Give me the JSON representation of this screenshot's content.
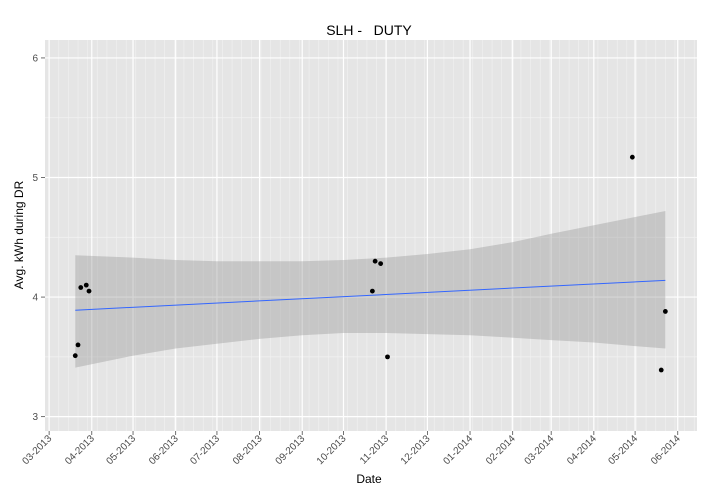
{
  "chart_data": {
    "type": "scatter",
    "title": "SLH -   DUTY",
    "xlabel": "Date",
    "ylabel": "Avg. kWh during DR",
    "x_type": "date",
    "xlim": [
      "2013-02-26",
      "2014-06-15"
    ],
    "ylim": [
      2.88,
      6.15
    ],
    "x_ticks": [
      "2013-03-01",
      "2013-04-01",
      "2013-05-01",
      "2013-06-01",
      "2013-07-01",
      "2013-08-01",
      "2013-09-01",
      "2013-10-01",
      "2013-11-01",
      "2013-12-01",
      "2014-01-01",
      "2014-02-01",
      "2014-03-01",
      "2014-04-01",
      "2014-05-01",
      "2014-06-01"
    ],
    "x_tick_labels": [
      "03-2013",
      "04-2013",
      "05-2013",
      "06-2013",
      "07-2013",
      "08-2013",
      "09-2013",
      "10-2013",
      "11-2013",
      "12-2013",
      "01-2014",
      "02-2014",
      "03-2014",
      "04-2014",
      "05-2014",
      "06-2014"
    ],
    "y_ticks": [
      3,
      4,
      5,
      6
    ],
    "y_tick_labels": [
      "3",
      "4",
      "5",
      "6"
    ],
    "grid": true,
    "legend": "none",
    "points": [
      {
        "x": "2013-03-20",
        "y": 3.51
      },
      {
        "x": "2013-03-22",
        "y": 3.6
      },
      {
        "x": "2013-03-24",
        "y": 4.08
      },
      {
        "x": "2013-03-28",
        "y": 4.1
      },
      {
        "x": "2013-03-30",
        "y": 4.05
      },
      {
        "x": "2013-10-22",
        "y": 4.05
      },
      {
        "x": "2013-10-24",
        "y": 4.3
      },
      {
        "x": "2013-10-28",
        "y": 4.28
      },
      {
        "x": "2013-11-02",
        "y": 3.5
      },
      {
        "x": "2014-04-29",
        "y": 5.17
      },
      {
        "x": "2014-05-20",
        "y": 3.39
      },
      {
        "x": "2014-05-23",
        "y": 3.88
      }
    ],
    "trend_line": {
      "method": "linear",
      "x": [
        "2013-03-20",
        "2014-05-23"
      ],
      "y": [
        3.89,
        4.14
      ]
    },
    "confidence_band": {
      "x": [
        "2013-03-20",
        "2013-05-01",
        "2013-06-01",
        "2013-07-01",
        "2013-08-01",
        "2013-09-01",
        "2013-10-01",
        "2013-11-01",
        "2013-12-01",
        "2014-01-01",
        "2014-02-01",
        "2014-03-01",
        "2014-04-01",
        "2014-05-01",
        "2014-05-23"
      ],
      "upper": [
        4.35,
        4.33,
        4.31,
        4.3,
        4.3,
        4.3,
        4.31,
        4.33,
        4.36,
        4.4,
        4.46,
        4.53,
        4.6,
        4.67,
        4.72
      ],
      "lower": [
        3.41,
        3.51,
        3.57,
        3.61,
        3.65,
        3.68,
        3.7,
        3.7,
        3.69,
        3.68,
        3.66,
        3.64,
        3.62,
        3.59,
        3.57
      ]
    },
    "colors": {
      "panel": "#e5e5e5",
      "grid_major": "#ffffff",
      "grid_minor": "#f2f2f2",
      "point": "#000000",
      "trend": "#3366ff",
      "band": "#999999"
    }
  }
}
